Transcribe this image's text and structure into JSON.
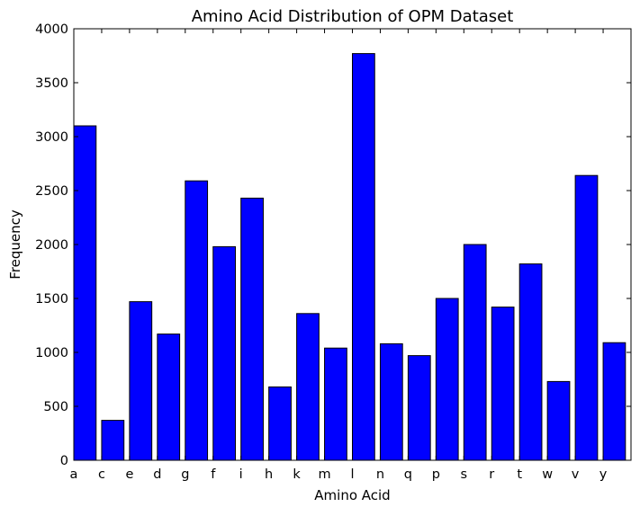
{
  "chart_data": {
    "type": "bar",
    "title": "Amino Acid Distribution of OPM Dataset",
    "xlabel": "Amino Acid",
    "ylabel": "Frequency",
    "categories": [
      "a",
      "c",
      "e",
      "d",
      "g",
      "f",
      "i",
      "h",
      "k",
      "m",
      "l",
      "n",
      "q",
      "p",
      "s",
      "r",
      "t",
      "w",
      "v",
      "y"
    ],
    "values": [
      3100,
      370,
      1470,
      1170,
      2590,
      1980,
      2430,
      680,
      1360,
      1040,
      3770,
      1080,
      970,
      1500,
      2000,
      1420,
      1820,
      730,
      2640,
      1090
    ],
    "ylim": [
      0,
      4000
    ],
    "yticks": [
      0,
      500,
      1000,
      1500,
      2000,
      2500,
      3000,
      3500,
      4000
    ],
    "xlim": [
      0,
      20
    ],
    "bar_color": "#0000ff",
    "edge_color": "#000000",
    "grid": false,
    "legend": "none"
  }
}
